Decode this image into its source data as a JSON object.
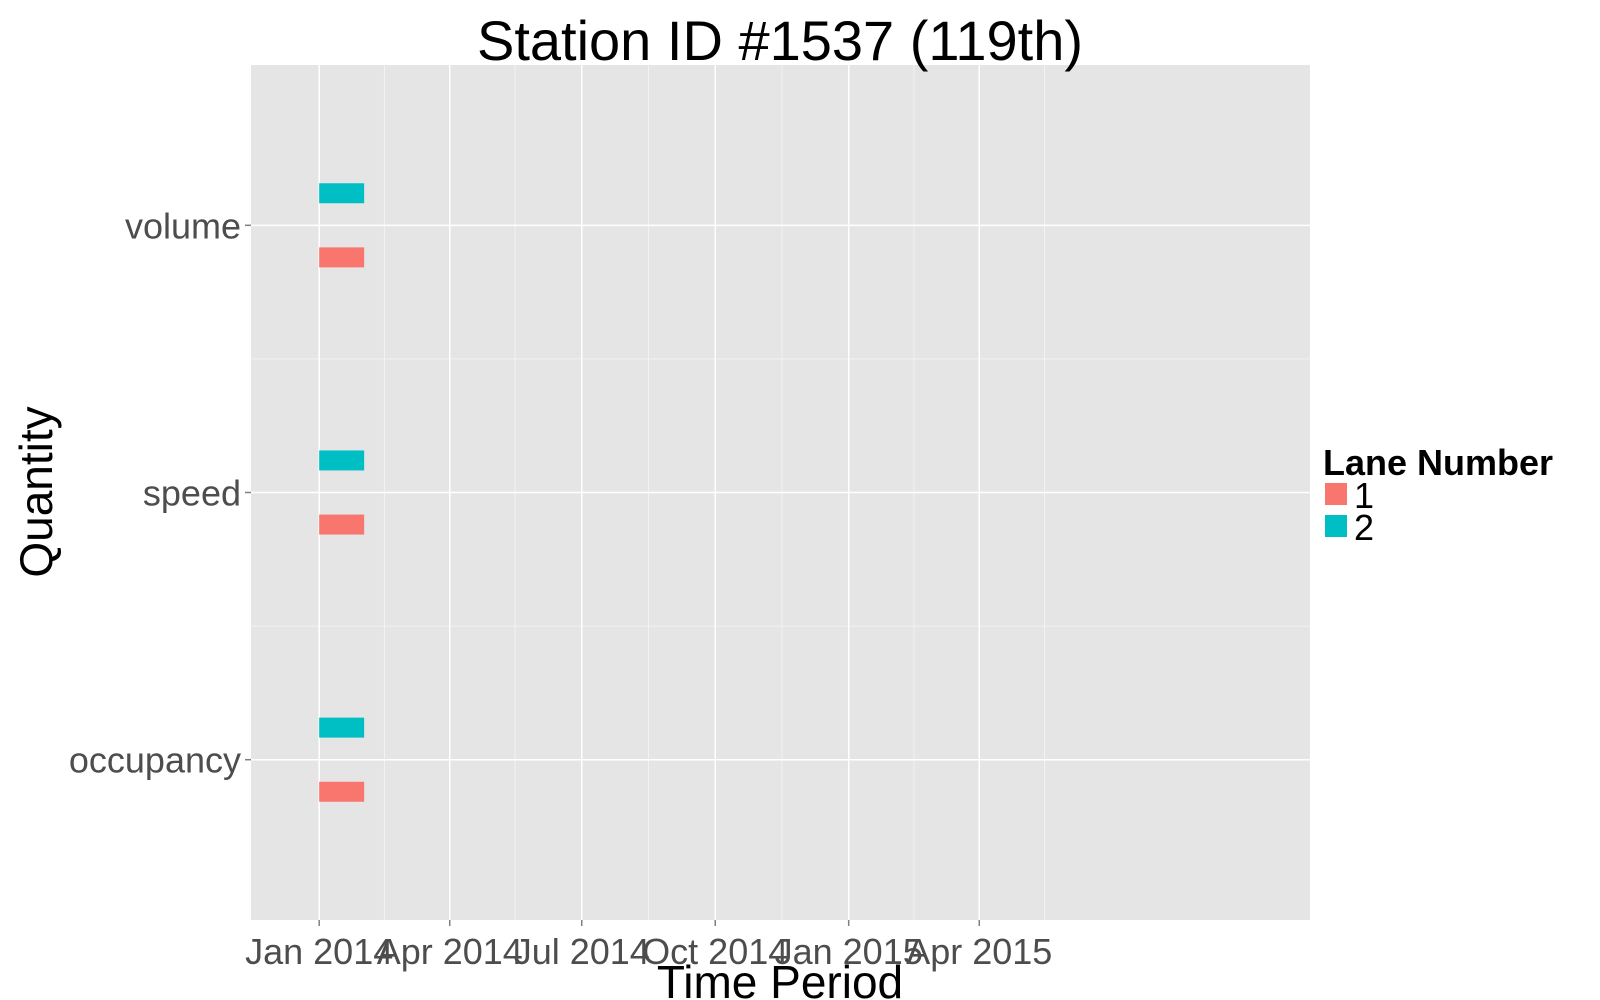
{
  "chart_data": {
    "type": "bar",
    "title": "Station ID #1537 (119th)",
    "xlabel": "Time Period",
    "ylabel": "Quantity",
    "x_axis_type": "date",
    "xlim": [
      "2013-11-15",
      "2015-11-15"
    ],
    "x_ticks": [
      {
        "date": "2014-01-01",
        "label": "Jan 2014"
      },
      {
        "date": "2014-04-01",
        "label": "Apr 2014"
      },
      {
        "date": "2014-07-01",
        "label": "Jul 2014"
      },
      {
        "date": "2014-10-01",
        "label": "Oct 2014"
      },
      {
        "date": "2015-01-01",
        "label": "Jan 2015"
      },
      {
        "date": "2015-04-01",
        "label": "Apr 2015"
      }
    ],
    "categories": [
      "occupancy",
      "speed",
      "volume"
    ],
    "legend": {
      "title": "Lane Number",
      "position": "right"
    },
    "grid": true,
    "series": [
      {
        "name": "1",
        "color": "#F8766D",
        "intervals": [
          {
            "category": "volume",
            "start": "2014-01-01",
            "end": "2014-02-01"
          },
          {
            "category": "speed",
            "start": "2014-01-01",
            "end": "2014-02-01"
          },
          {
            "category": "occupancy",
            "start": "2014-01-01",
            "end": "2014-02-01"
          }
        ]
      },
      {
        "name": "2",
        "color": "#00BFC4",
        "intervals": [
          {
            "category": "volume",
            "start": "2014-01-01",
            "end": "2014-02-01"
          },
          {
            "category": "speed",
            "start": "2014-01-01",
            "end": "2014-02-01"
          },
          {
            "category": "occupancy",
            "start": "2014-01-01",
            "end": "2014-02-01"
          }
        ]
      }
    ]
  }
}
